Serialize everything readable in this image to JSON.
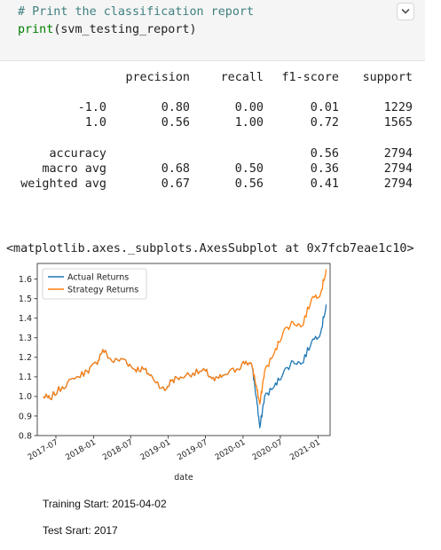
{
  "code": {
    "comment": "# Print the classification report",
    "fn": "print",
    "args": "(svm_testing_report)"
  },
  "report": {
    "headers": [
      "precision",
      "recall",
      "f1-score",
      "support"
    ],
    "rows": [
      {
        "label": "-1.0",
        "precision": "0.80",
        "recall": "0.00",
        "f1": "0.01",
        "support": "1229"
      },
      {
        "label": "1.0",
        "precision": "0.56",
        "recall": "1.00",
        "f1": "0.72",
        "support": "1565"
      },
      {
        "label": "accuracy",
        "precision": "",
        "recall": "",
        "f1": "0.56",
        "support": "2794"
      },
      {
        "label": "macro avg",
        "precision": "0.68",
        "recall": "0.50",
        "f1": "0.36",
        "support": "2794"
      },
      {
        "label": "weighted avg",
        "precision": "0.67",
        "recall": "0.56",
        "f1": "0.41",
        "support": "2794"
      }
    ]
  },
  "axes_repr": "<matplotlib.axes._subplots.AxesSubplot at 0x7fcb7eae1c10>",
  "output_lines": {
    "training": "Training Start: 2015-04-02",
    "test": "Test Srart: 2017"
  },
  "colors": {
    "actual": "#1f77b4",
    "strategy": "#ff7f0e",
    "comment": "#408080",
    "builtin": "#008000"
  },
  "icons": {
    "collapse": "chevron-down-icon"
  },
  "chart_data": {
    "type": "line",
    "title": "",
    "xlabel": "date",
    "ylabel": "",
    "x_ticks": [
      "2017-07",
      "2018-01",
      "2018-07",
      "2019-01",
      "2019-07",
      "2020-01",
      "2020-07",
      "2021-01"
    ],
    "y_ticks": [
      "0.8",
      "0.9",
      "1.0",
      "1.1",
      "1.2",
      "1.3",
      "1.4",
      "1.5",
      "1.6"
    ],
    "ylim": [
      0.8,
      1.68
    ],
    "xlim": [
      "2017-04-01",
      "2021-03-01"
    ],
    "legend_position": "upper left",
    "grid": false,
    "series": [
      {
        "name": "Actual Returns",
        "x": [
          "2017-05-01",
          "2017-06-01",
          "2017-08-01",
          "2017-10-01",
          "2017-12-01",
          "2018-01-15",
          "2018-02-15",
          "2018-04-01",
          "2018-06-01",
          "2018-07-15",
          "2018-09-01",
          "2018-10-15",
          "2018-12-15",
          "2019-01-15",
          "2019-03-01",
          "2019-05-01",
          "2019-07-01",
          "2019-08-15",
          "2019-10-01",
          "2019-12-01",
          "2020-01-15",
          "2020-02-15",
          "2020-03-10",
          "2020-03-23",
          "2020-04-15",
          "2020-06-01",
          "2020-07-15",
          "2020-09-01",
          "2020-10-15",
          "2020-12-01",
          "2021-01-15",
          "2021-02-10"
        ],
        "y": [
          1.0,
          0.99,
          1.05,
          1.09,
          1.13,
          1.17,
          1.24,
          1.18,
          1.19,
          1.14,
          1.14,
          1.1,
          1.03,
          1.08,
          1.1,
          1.12,
          1.13,
          1.08,
          1.11,
          1.14,
          1.18,
          1.15,
          0.96,
          0.84,
          1.0,
          1.05,
          1.12,
          1.18,
          1.17,
          1.28,
          1.33,
          1.47
        ]
      },
      {
        "name": "Strategy Returns",
        "x": [
          "2017-05-01",
          "2017-06-01",
          "2017-08-01",
          "2017-10-01",
          "2017-12-01",
          "2018-01-15",
          "2018-02-15",
          "2018-04-01",
          "2018-06-01",
          "2018-07-15",
          "2018-09-01",
          "2018-10-15",
          "2018-12-15",
          "2019-01-15",
          "2019-03-01",
          "2019-05-01",
          "2019-07-01",
          "2019-08-15",
          "2019-10-01",
          "2019-12-01",
          "2020-01-15",
          "2020-02-15",
          "2020-03-10",
          "2020-03-23",
          "2020-04-15",
          "2020-06-01",
          "2020-07-15",
          "2020-09-01",
          "2020-10-15",
          "2020-12-01",
          "2021-01-15",
          "2021-02-10"
        ],
        "y": [
          1.0,
          0.99,
          1.05,
          1.09,
          1.13,
          1.17,
          1.24,
          1.18,
          1.19,
          1.14,
          1.14,
          1.1,
          1.03,
          1.08,
          1.1,
          1.12,
          1.13,
          1.08,
          1.11,
          1.14,
          1.18,
          1.15,
          1.03,
          0.96,
          1.13,
          1.22,
          1.33,
          1.38,
          1.36,
          1.5,
          1.53,
          1.65
        ]
      }
    ]
  }
}
